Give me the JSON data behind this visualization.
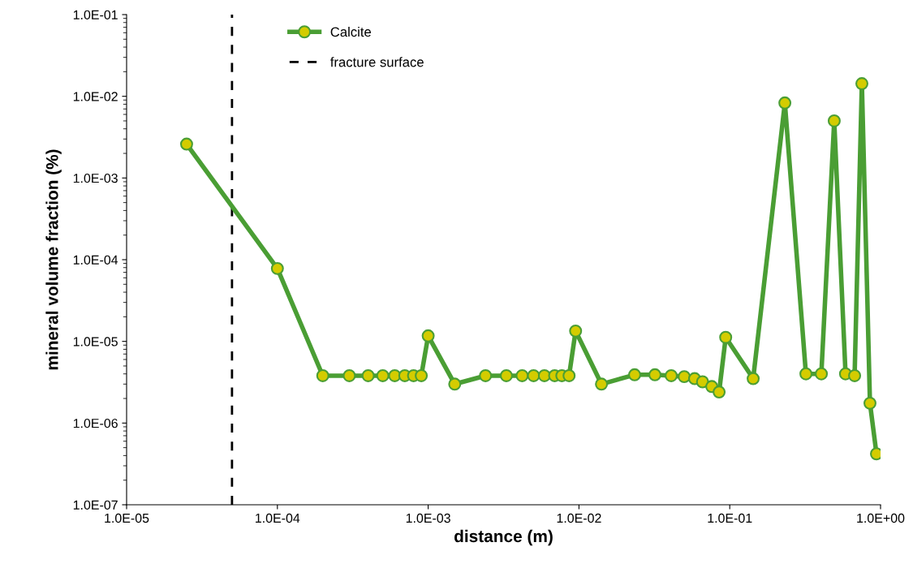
{
  "chart_data": {
    "type": "line",
    "xlabel": "distance (m)",
    "ylabel": "mineral volume fraction (%)",
    "log": "xy",
    "xlim": [
      1e-05,
      1
    ],
    "ylim": [
      1e-07,
      0.1
    ],
    "xticks": [
      {
        "value": 1e-05,
        "label": "1.0E-05"
      },
      {
        "value": 0.0001,
        "label": "1.0E-04"
      },
      {
        "value": 0.001,
        "label": "1.0E-03"
      },
      {
        "value": 0.01,
        "label": "1.0E-02"
      },
      {
        "value": 0.1,
        "label": "1.0E-01"
      },
      {
        "value": 1,
        "label": "1.0E+00"
      }
    ],
    "yticks": [
      {
        "value": 1e-07,
        "label": "1.0E-07"
      },
      {
        "value": 1e-06,
        "label": "1.0E-06"
      },
      {
        "value": 1e-05,
        "label": "1.0E-05"
      },
      {
        "value": 0.0001,
        "label": "1.0E-04"
      },
      {
        "value": 0.001,
        "label": "1.0E-03"
      },
      {
        "value": 0.01,
        "label": "1.0E-02"
      },
      {
        "value": 0.1,
        "label": "1.0E-01"
      }
    ],
    "grid": false,
    "legend": "top left",
    "marker": "circle",
    "line_style": "solid",
    "series": [
      {
        "name": "Calcite",
        "color": "#4a9e34",
        "x": [
          2.5e-05,
          0.0001,
          0.0002,
          0.0003,
          0.0004,
          0.0005,
          0.0006,
          0.0007,
          0.0008,
          0.0009,
          0.001,
          0.0015,
          0.0024,
          0.0033,
          0.0042,
          0.005,
          0.0059,
          0.0069,
          0.0077,
          0.0086,
          0.0095,
          0.0141,
          0.0234,
          0.0319,
          0.0409,
          0.0499,
          0.0585,
          0.066,
          0.076,
          0.085,
          0.094,
          0.143,
          0.232,
          0.32,
          0.405,
          0.493,
          0.586,
          0.673,
          0.752,
          0.851,
          0.94
        ],
        "values": [
          0.0026,
          7.8e-05,
          3.8e-06,
          3.8e-06,
          3.8e-06,
          3.8e-06,
          3.8e-06,
          3.8e-06,
          3.8e-06,
          3.8e-06,
          1.17e-05,
          3e-06,
          3.8e-06,
          3.8e-06,
          3.8e-06,
          3.8e-06,
          3.8e-06,
          3.8e-06,
          3.8e-06,
          3.8e-06,
          1.34e-05,
          3e-06,
          3.9e-06,
          3.9e-06,
          3.8e-06,
          3.7e-06,
          3.5e-06,
          3.2e-06,
          2.8e-06,
          2.4e-06,
          1.12e-05,
          3.5e-06,
          0.0083,
          4e-06,
          4e-06,
          0.005,
          4e-06,
          3.8e-06,
          0.0143,
          1.75e-06,
          4.2e-07
        ]
      }
    ],
    "ref_lines": [
      {
        "axis": "x",
        "value": 5e-05,
        "label": "fracture surface",
        "color": "#000000",
        "line_style": "dashed"
      }
    ]
  }
}
